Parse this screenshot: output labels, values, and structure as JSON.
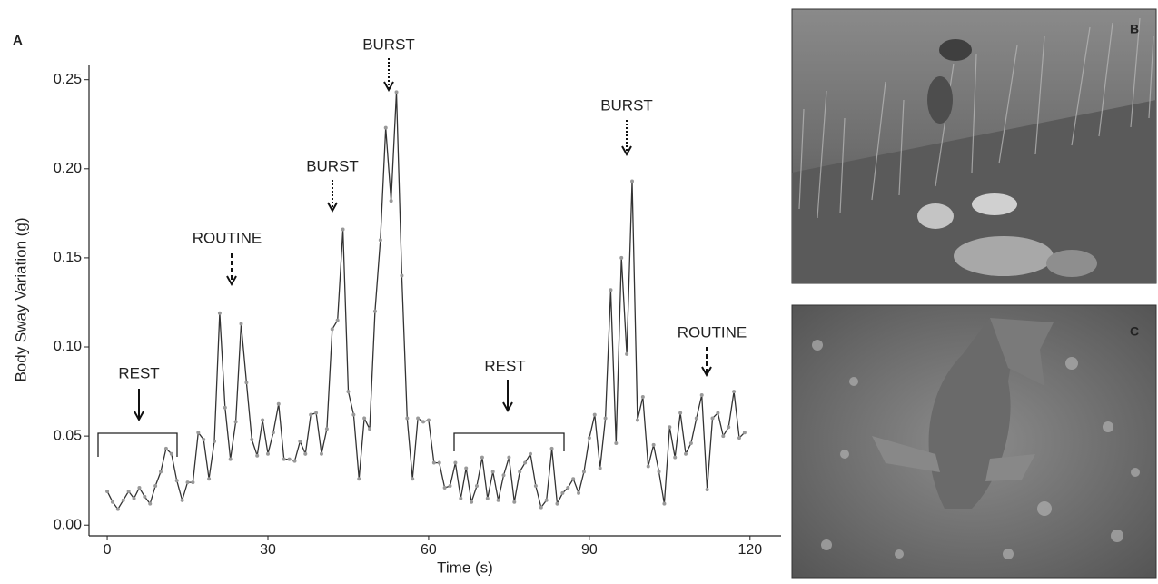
{
  "chart_data": {
    "type": "line",
    "panel_label": "A",
    "x_label": "Time (s)",
    "y_label": "Body Sway Variation (g)",
    "x": [
      0,
      1,
      2,
      3,
      4,
      5,
      6,
      7,
      8,
      9,
      10,
      11,
      12,
      13,
      14,
      15,
      16,
      17,
      18,
      19,
      20,
      21,
      22,
      23,
      24,
      25,
      26,
      27,
      28,
      29,
      30,
      31,
      32,
      33,
      34,
      35,
      36,
      37,
      38,
      39,
      40,
      41,
      42,
      43,
      44,
      45,
      46,
      47,
      48,
      49,
      50,
      51,
      52,
      53,
      54,
      55,
      56,
      57,
      58,
      59,
      60,
      61,
      62,
      63,
      64,
      65,
      66,
      67,
      68,
      69,
      70,
      71,
      72,
      73,
      74,
      75,
      76,
      77,
      78,
      79,
      80,
      81,
      82,
      83,
      84,
      85,
      86,
      87,
      88,
      89,
      90,
      91,
      92,
      93,
      94,
      95,
      96,
      97,
      98,
      99,
      100,
      101,
      102,
      103,
      104,
      105,
      106,
      107,
      108,
      109,
      110,
      111,
      112,
      113,
      114,
      115,
      116,
      117,
      118,
      119
    ],
    "values": [
      0.019,
      0.013,
      0.009,
      0.014,
      0.019,
      0.015,
      0.021,
      0.016,
      0.012,
      0.022,
      0.03,
      0.043,
      0.04,
      0.025,
      0.014,
      0.024,
      0.024,
      0.052,
      0.048,
      0.026,
      0.047,
      0.119,
      0.066,
      0.037,
      0.058,
      0.113,
      0.08,
      0.048,
      0.039,
      0.059,
      0.04,
      0.052,
      0.068,
      0.037,
      0.037,
      0.036,
      0.047,
      0.04,
      0.062,
      0.063,
      0.04,
      0.054,
      0.11,
      0.115,
      0.166,
      0.075,
      0.062,
      0.026,
      0.06,
      0.054,
      0.12,
      0.16,
      0.223,
      0.182,
      0.243,
      0.14,
      0.06,
      0.026,
      0.06,
      0.058,
      0.059,
      0.035,
      0.035,
      0.021,
      0.022,
      0.035,
      0.015,
      0.032,
      0.013,
      0.022,
      0.038,
      0.015,
      0.03,
      0.014,
      0.028,
      0.038,
      0.013,
      0.03,
      0.035,
      0.04,
      0.022,
      0.01,
      0.014,
      0.043,
      0.012,
      0.018,
      0.021,
      0.026,
      0.018,
      0.03,
      0.049,
      0.062,
      0.032,
      0.06,
      0.132,
      0.046,
      0.15,
      0.096,
      0.193,
      0.059,
      0.072,
      0.033,
      0.045,
      0.03,
      0.012,
      0.055,
      0.038,
      0.063,
      0.04,
      0.046,
      0.06,
      0.073,
      0.02,
      0.06,
      0.063,
      0.05,
      0.055,
      0.075,
      0.049,
      0.052
    ],
    "color": "#333333",
    "xlim": [
      -3.4,
      125.8
    ],
    "xticks": [
      0,
      30,
      60,
      90,
      120
    ],
    "ylim": [
      -0.006,
      0.258
    ],
    "yticks": [
      {
        "value": 0,
        "label": "0.00"
      },
      0.05,
      {
        "value": 0.1,
        "label": "0.10"
      },
      0.15,
      {
        "value": 0.2,
        "label": "0.20"
      },
      0.25
    ],
    "annotations": [
      "REST",
      "ROUTINE",
      "BURST",
      "BURST",
      "REST",
      "BURST",
      "ROUTINE"
    ]
  },
  "photos": [
    {
      "label": "B"
    },
    {
      "label": "C"
    }
  ]
}
